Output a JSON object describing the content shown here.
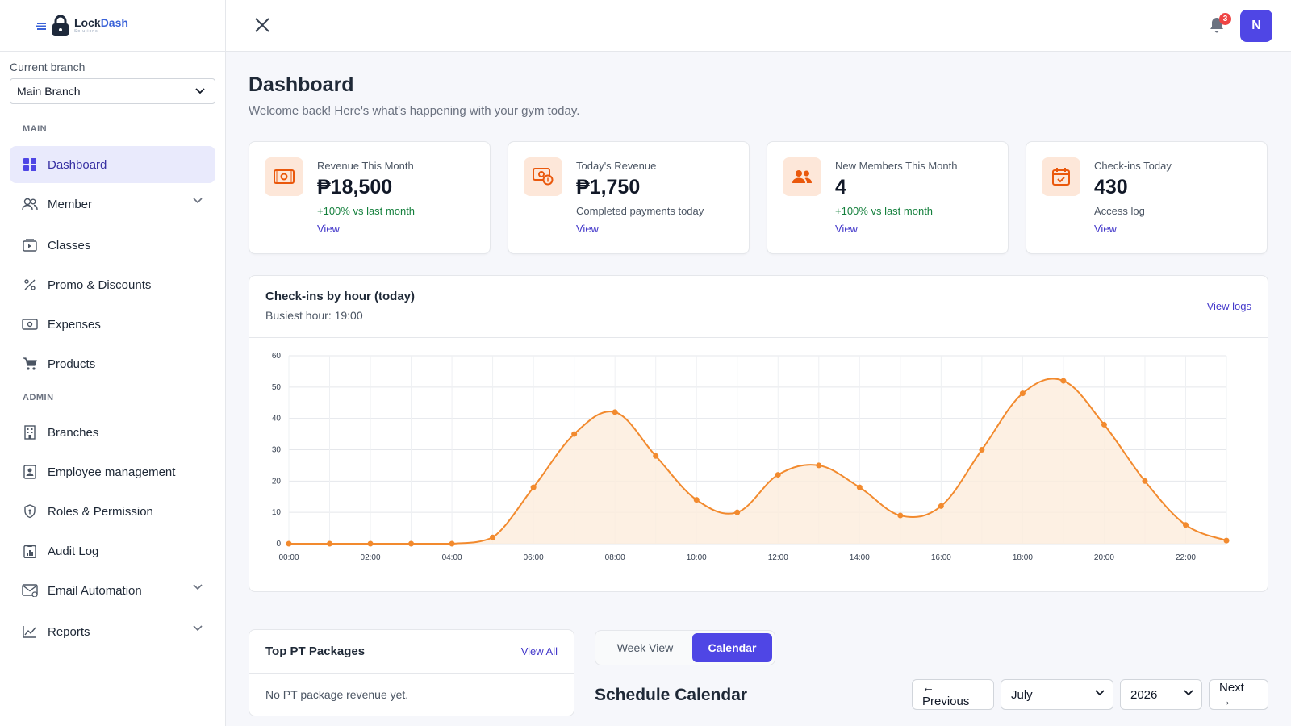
{
  "brand": {
    "name_a": "Lock",
    "name_b": "Dash",
    "sub": "Solutions"
  },
  "sidebar": {
    "branch_label": "Current branch",
    "branch_value": "Main Branch",
    "section_main": "MAIN",
    "section_admin": "ADMIN",
    "items": [
      {
        "label": "Dashboard",
        "icon": "grid-icon"
      },
      {
        "label": "Member",
        "icon": "users-icon"
      },
      {
        "label": "Classes",
        "icon": "video-icon"
      },
      {
        "label": "Promo & Discounts",
        "icon": "percent-icon"
      },
      {
        "label": "Expenses",
        "icon": "cash-icon"
      },
      {
        "label": "Products",
        "icon": "cart-icon"
      },
      {
        "label": "Branches",
        "icon": "building-icon"
      },
      {
        "label": "Employee management",
        "icon": "id-badge-icon"
      },
      {
        "label": "Roles & Permission",
        "icon": "shield-icon"
      },
      {
        "label": "Audit Log",
        "icon": "clipboard-icon"
      },
      {
        "label": "Email Automation",
        "icon": "mail-icon"
      },
      {
        "label": "Reports",
        "icon": "chart-icon"
      }
    ]
  },
  "topbar": {
    "notification_count": "3",
    "avatar_initial": "N"
  },
  "page": {
    "title": "Dashboard",
    "subtitle": "Welcome back! Here's what's happening with your gym today."
  },
  "cards": [
    {
      "label": "Revenue This Month",
      "value": "₱18,500",
      "note": "+100% vs last month",
      "link": "View"
    },
    {
      "label": "Today's Revenue",
      "value": "₱1,750",
      "note": "Completed payments today",
      "link": "View"
    },
    {
      "label": "New Members This Month",
      "value": "4",
      "note": "+100% vs last month",
      "link": "View"
    },
    {
      "label": "Check-ins Today",
      "value": "430",
      "note": "Access log",
      "link": "View"
    }
  ],
  "checkins": {
    "title": "Check-ins by hour (today)",
    "busiest": "Busiest hour: 19:00",
    "link": "View logs"
  },
  "chart_data": {
    "type": "area",
    "x": [
      "00:00",
      "01:00",
      "02:00",
      "03:00",
      "04:00",
      "05:00",
      "06:00",
      "07:00",
      "08:00",
      "09:00",
      "10:00",
      "11:00",
      "12:00",
      "13:00",
      "14:00",
      "15:00",
      "16:00",
      "17:00",
      "18:00",
      "19:00",
      "20:00",
      "21:00",
      "22:00",
      "23:00"
    ],
    "values": [
      0,
      0,
      0,
      0,
      0,
      2,
      18,
      35,
      42,
      28,
      14,
      10,
      22,
      25,
      18,
      9,
      12,
      30,
      48,
      52,
      38,
      20,
      6,
      1
    ],
    "x_tick_labels": [
      "00:00",
      "02:00",
      "04:00",
      "06:00",
      "08:00",
      "10:00",
      "12:00",
      "14:00",
      "16:00",
      "18:00",
      "20:00",
      "22:00"
    ],
    "y_ticks": [
      "0",
      "10",
      "20",
      "30",
      "40",
      "50",
      "60"
    ],
    "ylim": [
      0,
      60
    ],
    "grid": true,
    "color": "#f28a2e"
  },
  "pt_packages": {
    "title": "Top PT Packages",
    "link": "View All",
    "empty": "No PT package revenue yet."
  },
  "schedule": {
    "week_view": "Week View",
    "calendar": "Calendar",
    "title": "Schedule Calendar",
    "previous": "← Previous",
    "month": "July",
    "year": "2026",
    "next": "Next →"
  },
  "colors": {
    "accent": "#4f46e5",
    "orange": "#f28a2e",
    "green": "#15803d"
  }
}
